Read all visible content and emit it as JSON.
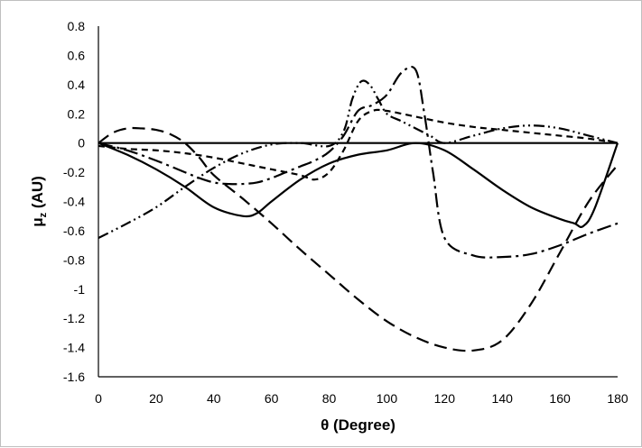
{
  "chart_data": {
    "type": "line",
    "xlabel": "θ (Degree)",
    "ylabel": "μ",
    "ylabel_sub": "z",
    "ylabel_unit": " (AU)",
    "xlim": [
      0,
      180
    ],
    "ylim": [
      -1.6,
      0.8
    ],
    "xticks": [
      0,
      20,
      40,
      60,
      80,
      100,
      120,
      140,
      160,
      180
    ],
    "yticks": [
      0.8,
      0.6,
      0.4,
      0.2,
      0,
      -0.2,
      -0.4,
      -0.6,
      -0.8,
      -1,
      -1.2,
      -1.4,
      -1.6
    ],
    "grid": false,
    "legend": "none",
    "series": [
      {
        "dash": "solid",
        "color": "#000000",
        "x": [
          0,
          10,
          20,
          30,
          40,
          50,
          55,
          60,
          70,
          80,
          90,
          100,
          110,
          120,
          130,
          140,
          150,
          160,
          165,
          168,
          172,
          180
        ],
        "y": [
          0,
          -0.08,
          -0.18,
          -0.3,
          -0.44,
          -0.5,
          -0.48,
          -0.4,
          -0.25,
          -0.14,
          -0.08,
          -0.05,
          0,
          -0.05,
          -0.18,
          -0.32,
          -0.44,
          -0.52,
          -0.55,
          -0.57,
          -0.45,
          0
        ]
      },
      {
        "dash": "long-dash",
        "color": "#000000",
        "x": [
          0,
          5,
          10,
          15,
          20,
          25,
          30,
          35,
          40,
          50,
          60,
          70,
          80,
          90,
          100,
          110,
          120,
          130,
          140,
          150,
          160,
          170,
          180
        ],
        "y": [
          0,
          0.07,
          0.1,
          0.1,
          0.09,
          0.06,
          0,
          -0.1,
          -0.22,
          -0.38,
          -0.55,
          -0.73,
          -0.9,
          -1.07,
          -1.22,
          -1.33,
          -1.4,
          -1.42,
          -1.35,
          -1.1,
          -0.75,
          -0.4,
          -0.15
        ]
      },
      {
        "dash": "short-dash",
        "color": "#000000",
        "x": [
          0,
          10,
          20,
          30,
          40,
          50,
          60,
          70,
          75,
          80,
          85,
          90,
          95,
          100,
          110,
          120,
          130,
          140,
          150,
          160,
          170,
          180
        ],
        "y": [
          -0.02,
          -0.04,
          -0.05,
          -0.07,
          -0.1,
          -0.14,
          -0.18,
          -0.22,
          -0.25,
          -0.2,
          -0.05,
          0.15,
          0.22,
          0.22,
          0.18,
          0.14,
          0.11,
          0.09,
          0.07,
          0.05,
          0.03,
          0
        ]
      },
      {
        "dash": "dash-dot",
        "color": "#000000",
        "x": [
          0,
          10,
          20,
          30,
          35,
          40,
          45,
          50,
          55,
          60,
          65,
          70,
          75,
          80,
          85,
          90,
          95,
          100,
          105,
          110,
          113,
          116,
          120,
          130,
          140,
          150,
          160,
          170,
          180
        ],
        "y": [
          0,
          -0.05,
          -0.12,
          -0.2,
          -0.24,
          -0.27,
          -0.28,
          -0.28,
          -0.27,
          -0.24,
          -0.2,
          -0.16,
          -0.12,
          -0.06,
          0.05,
          0.22,
          0.26,
          0.33,
          0.48,
          0.5,
          0.2,
          -0.2,
          -0.65,
          -0.77,
          -0.78,
          -0.76,
          -0.7,
          -0.62,
          -0.55
        ]
      },
      {
        "dash": "dash-dot-dot",
        "color": "#000000",
        "x": [
          0,
          10,
          20,
          30,
          40,
          50,
          60,
          70,
          80,
          85,
          88,
          91,
          94,
          97,
          100,
          105,
          110,
          115,
          120,
          130,
          140,
          150,
          160,
          170,
          180
        ],
        "y": [
          -0.65,
          -0.55,
          -0.44,
          -0.3,
          -0.17,
          -0.07,
          -0.01,
          0,
          -0.02,
          0.08,
          0.3,
          0.42,
          0.4,
          0.3,
          0.2,
          0.15,
          0.1,
          0.05,
          0,
          0.05,
          0.1,
          0.12,
          0.1,
          0.05,
          0
        ]
      }
    ]
  }
}
